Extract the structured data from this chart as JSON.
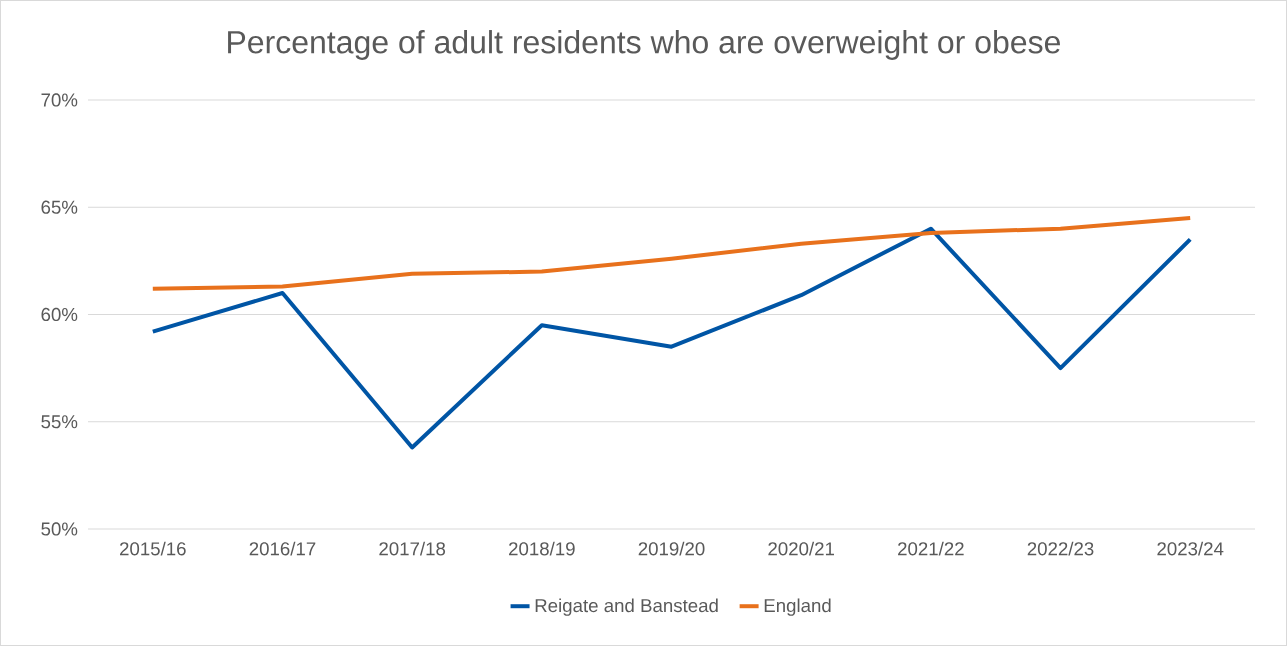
{
  "chart_data": {
    "type": "line",
    "title": "Percentage of adult residents who are overweight or obese",
    "categories": [
      "2015/16",
      "2016/17",
      "2017/18",
      "2018/19",
      "2019/20",
      "2020/21",
      "2021/22",
      "2022/23",
      "2023/24"
    ],
    "series": [
      {
        "name": "Reigate and Banstead",
        "color": "#0055a5",
        "values": [
          59.2,
          61.0,
          53.8,
          59.5,
          58.5,
          60.9,
          64.0,
          57.5,
          63.5
        ]
      },
      {
        "name": "England",
        "color": "#e8711c",
        "values": [
          61.2,
          61.3,
          61.9,
          62.0,
          62.6,
          63.3,
          63.8,
          64.0,
          64.5
        ]
      }
    ],
    "ylim": [
      50,
      70
    ],
    "yticks": [
      {
        "value": 50,
        "label": "50%"
      },
      {
        "value": 55,
        "label": "55%"
      },
      {
        "value": 60,
        "label": "60%"
      },
      {
        "value": 65,
        "label": "65%"
      },
      {
        "value": 70,
        "label": "70%"
      }
    ],
    "grid": "y",
    "legend": "bottom",
    "marker": "none",
    "line_style": "solid"
  }
}
